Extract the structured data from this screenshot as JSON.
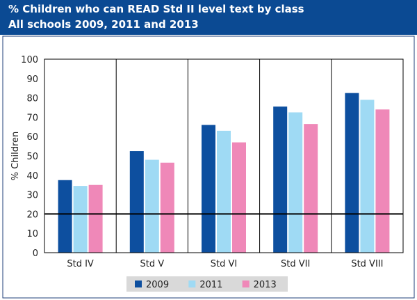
{
  "header": {
    "title": "% Children who can READ Std II level text by class",
    "subtitle": "All schools 2009, 2011 and 2013"
  },
  "colors": {
    "header_bg": "#0b4a93",
    "s2009": "#0d4f9f",
    "s2011": "#9fdaf4",
    "s2013": "#ef88b8",
    "legend_bg": "#d9d9d9"
  },
  "chart_data": {
    "type": "bar",
    "title": "% Children who can READ Std II level text by class",
    "subtitle": "All schools 2009, 2011 and 2013",
    "ylabel": "% Children",
    "xlabel": "",
    "ylim": [
      0,
      100
    ],
    "yticks": [
      "0",
      "10",
      "20",
      "30",
      "40",
      "50",
      "60",
      "70",
      "80",
      "90",
      "100"
    ],
    "categories": [
      "Std IV",
      "Std V",
      "Std VI",
      "Std VII",
      "Std VIII"
    ],
    "series": [
      {
        "name": "2009",
        "values": [
          37.5,
          52.5,
          66,
          75.5,
          82.5
        ]
      },
      {
        "name": "2011",
        "values": [
          34.5,
          48,
          63,
          72.5,
          79
        ]
      },
      {
        "name": "2013",
        "values": [
          35,
          46.5,
          57,
          66.5,
          74
        ]
      }
    ],
    "reference_line": 20,
    "grid": false,
    "legend": "bottom"
  }
}
